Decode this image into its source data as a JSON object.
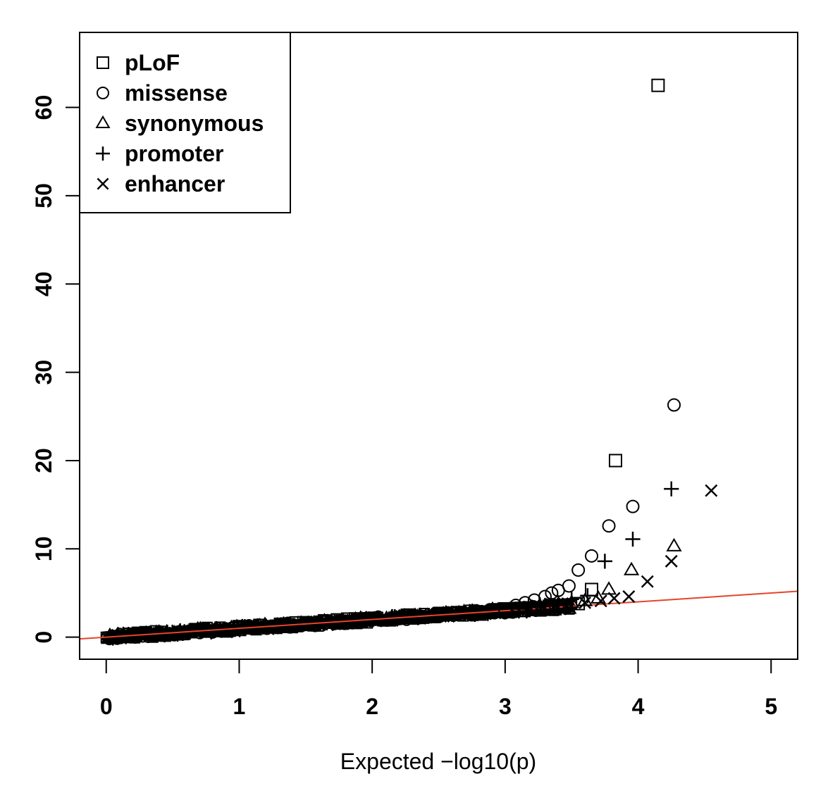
{
  "chart_data": {
    "type": "scatter",
    "title": "",
    "xlabel": "Expected −log10(p)",
    "ylabel": "",
    "xlim": [
      -0.2,
      5.2
    ],
    "ylim": [
      -2.5,
      68.5
    ],
    "x_ticks": [
      0,
      1,
      2,
      3,
      4,
      5
    ],
    "y_ticks": [
      0,
      10,
      20,
      30,
      40,
      50,
      60
    ],
    "grid": false,
    "legend_position": "top-left",
    "colors": {
      "points": "#000000",
      "reference_line": "#e8432e",
      "axes": "#000000"
    },
    "reference_line": {
      "description": "y = x",
      "x": [
        -0.2,
        5.2
      ],
      "y": [
        -0.2,
        5.2
      ]
    },
    "series": [
      {
        "name": "pLoF",
        "marker": "square",
        "points": [
          [
            3.83,
            20.0
          ],
          [
            4.15,
            62.5
          ],
          [
            3.65,
            5.4
          ],
          [
            3.55,
            3.8
          ],
          [
            3.45,
            3.6
          ],
          [
            3.35,
            3.5
          ],
          [
            3.2,
            3.3
          ],
          [
            3.0,
            3.05
          ]
        ]
      },
      {
        "name": "missense",
        "marker": "circle",
        "points": [
          [
            4.27,
            26.3
          ],
          [
            3.96,
            14.8
          ],
          [
            3.78,
            12.6
          ],
          [
            3.65,
            9.2
          ],
          [
            3.55,
            7.6
          ],
          [
            3.48,
            5.8
          ],
          [
            3.4,
            5.3
          ],
          [
            3.35,
            5.0
          ],
          [
            3.3,
            4.6
          ],
          [
            3.22,
            4.2
          ],
          [
            3.15,
            3.9
          ],
          [
            3.08,
            3.6
          ]
        ]
      },
      {
        "name": "synonymous",
        "marker": "triangle",
        "points": [
          [
            4.27,
            10.3
          ],
          [
            3.95,
            7.6
          ],
          [
            3.78,
            5.4
          ],
          [
            3.7,
            4.4
          ],
          [
            3.6,
            4.1
          ],
          [
            3.5,
            3.9
          ],
          [
            3.4,
            3.7
          ],
          [
            3.3,
            3.5
          ],
          [
            3.2,
            3.3
          ]
        ]
      },
      {
        "name": "promoter",
        "marker": "plus",
        "points": [
          [
            4.25,
            16.8
          ],
          [
            3.96,
            11.1
          ],
          [
            3.75,
            8.6
          ],
          [
            3.62,
            4.7
          ],
          [
            3.5,
            4.3
          ],
          [
            3.4,
            3.9
          ],
          [
            3.3,
            3.6
          ],
          [
            3.2,
            3.4
          ],
          [
            3.1,
            3.2
          ]
        ]
      },
      {
        "name": "enhancer",
        "marker": "cross",
        "points": [
          [
            4.55,
            16.6
          ],
          [
            4.25,
            8.6
          ],
          [
            4.07,
            6.3
          ],
          [
            3.93,
            4.6
          ],
          [
            3.82,
            4.4
          ],
          [
            3.72,
            4.1
          ],
          [
            3.6,
            3.9
          ],
          [
            3.48,
            3.7
          ],
          [
            3.38,
            3.5
          ],
          [
            3.28,
            3.4
          ],
          [
            3.18,
            3.25
          ]
        ]
      }
    ],
    "bulk_band": {
      "description": "dense overlapping points along the null line",
      "x_range": [
        0,
        3.5
      ],
      "y_offset_min": -0.6,
      "y_offset_max": 0.6
    }
  }
}
